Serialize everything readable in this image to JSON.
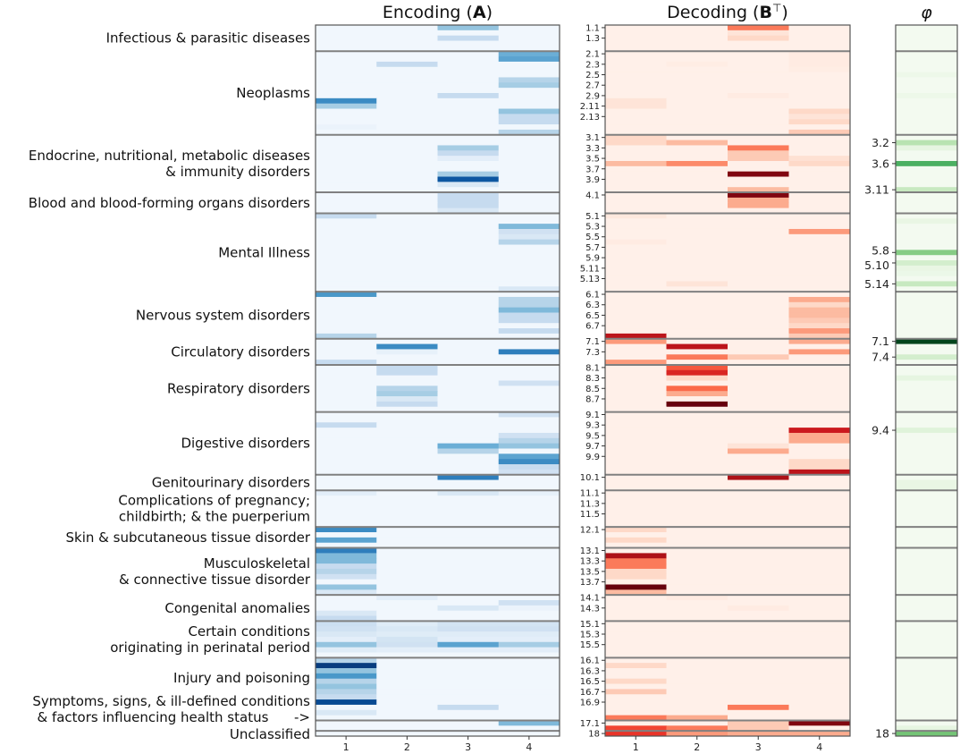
{
  "chart_data": {
    "type": "heatmap",
    "panels": [
      {
        "key": "encoding",
        "title_parts": [
          "Encoding (",
          "A",
          ")"
        ],
        "colormap": "Blues",
        "columns": [
          "1",
          "2",
          "3",
          "4"
        ]
      },
      {
        "key": "decoding",
        "title_parts": [
          "Decoding (",
          "B",
          "⊤",
          ")"
        ],
        "colormap": "Reds",
        "columns": [
          "1",
          "2",
          "3",
          "4"
        ]
      },
      {
        "key": "phi",
        "title_parts": [
          "φ"
        ],
        "colormap": "Greens",
        "columns": []
      }
    ],
    "groups": [
      {
        "id": "1",
        "rows": 5,
        "lines": [
          "Infectious & parasitic diseases"
        ]
      },
      {
        "id": "2",
        "rows": 16,
        "lines": [
          "Neoplasms"
        ]
      },
      {
        "id": "3",
        "rows": 11,
        "lines": [
          "Endocrine, nutritional, metabolic diseases",
          "& immunity disorders"
        ]
      },
      {
        "id": "4",
        "rows": 4,
        "lines": [
          "Blood and blood-forming organs disorders"
        ]
      },
      {
        "id": "5",
        "rows": 15,
        "lines": [
          "Mental Illness"
        ]
      },
      {
        "id": "6",
        "rows": 9,
        "lines": [
          "Nervous system disorders"
        ]
      },
      {
        "id": "7",
        "rows": 5,
        "lines": [
          "Circulatory disorders"
        ]
      },
      {
        "id": "8",
        "rows": 9,
        "lines": [
          "Respiratory disorders"
        ]
      },
      {
        "id": "9",
        "rows": 12,
        "lines": [
          "Digestive disorders"
        ]
      },
      {
        "id": "10",
        "rows": 3,
        "lines": [
          "Genitourinary disorders"
        ]
      },
      {
        "id": "11",
        "rows": 7,
        "lines": [
          "Complications of pregnancy;",
          "childbirth; & the puerperium"
        ]
      },
      {
        "id": "12",
        "rows": 4,
        "lines": [
          "Skin & subcutaneous tissue disorder"
        ]
      },
      {
        "id": "13",
        "rows": 9,
        "lines": [
          "Musculoskeletal",
          "& connective tissue disorder"
        ]
      },
      {
        "id": "14",
        "rows": 5,
        "lines": [
          "Congenital anomalies"
        ]
      },
      {
        "id": "15",
        "rows": 7,
        "lines": [
          "Certain conditions",
          "originating in perinatal period"
        ]
      },
      {
        "id": "16",
        "rows": 12,
        "lines": [
          "Injury and poisoning"
        ]
      },
      {
        "id": "17",
        "rows": 2,
        "lines": [
          "Symptoms, signs, & ill-defined conditions",
          "& factors influencing health status      ->"
        ]
      },
      {
        "id": "18",
        "rows": 1,
        "lines": [
          "Unclassified"
        ]
      }
    ],
    "decoding_tick_labels": [
      "1.1",
      "1.3",
      "2.1",
      "2.3",
      "2.5",
      "2.7",
      "2.9",
      "2.11",
      "2.13",
      "3.1",
      "3.3",
      "3.5",
      "3.7",
      "3.9",
      "4.1",
      "5.1",
      "5.3",
      "5.5",
      "5.7",
      "5.9",
      "5.11",
      "5.13",
      "6.1",
      "6.3",
      "6.5",
      "6.7",
      "7.1",
      "7.3",
      "8.1",
      "8.3",
      "8.5",
      "8.7",
      "9.1",
      "9.3",
      "9.5",
      "9.7",
      "9.9",
      "10.1",
      "11.1",
      "11.3",
      "11.5",
      "12.1",
      "13.1",
      "13.3",
      "13.5",
      "13.7",
      "14.1",
      "14.3",
      "15.1",
      "15.3",
      "15.5",
      "16.1",
      "16.3",
      "16.5",
      "16.7",
      "16.9",
      "17.1",
      "18"
    ],
    "phi_tick_labels": [
      "3.2",
      "3.6",
      "3.11",
      "5.8",
      "5.10",
      "5.14",
      "7.1",
      "7.4",
      "9.4",
      "18"
    ],
    "value_range": [
      0,
      1
    ],
    "background_value": 0.03,
    "encoding_cells": [
      [
        "1.1",
        3,
        0.4
      ],
      [
        "1.3",
        3,
        0.25
      ],
      [
        "2.1",
        4,
        0.5
      ],
      [
        "2.2",
        4,
        0.55
      ],
      [
        "2.3",
        2,
        0.25
      ],
      [
        "2.6",
        4,
        0.3
      ],
      [
        "2.7",
        4,
        0.35
      ],
      [
        "2.9",
        3,
        0.25
      ],
      [
        "2.10",
        1,
        0.65
      ],
      [
        "2.11",
        1,
        0.35
      ],
      [
        "2.12",
        4,
        0.4
      ],
      [
        "2.13",
        4,
        0.25
      ],
      [
        "2.14",
        4,
        0.25
      ],
      [
        "2.15",
        1,
        0.06
      ],
      [
        "2.16",
        4,
        0.3
      ],
      [
        "3.3",
        3,
        0.35
      ],
      [
        "3.4",
        3,
        0.25
      ],
      [
        "3.5",
        3,
        0.1
      ],
      [
        "3.8",
        3,
        0.35
      ],
      [
        "3.9",
        3,
        0.85
      ],
      [
        "3.10",
        3,
        0.15
      ],
      [
        "4.1",
        3,
        0.25
      ],
      [
        "4.2",
        3,
        0.25
      ],
      [
        "4.3",
        3,
        0.25
      ],
      [
        "4.4",
        3,
        0.15
      ],
      [
        "5.1",
        1,
        0.25
      ],
      [
        "5.3",
        4,
        0.45
      ],
      [
        "5.4",
        4,
        0.2
      ],
      [
        "5.5",
        4,
        0.15
      ],
      [
        "5.6",
        4,
        0.3
      ],
      [
        "5.15",
        4,
        0.15
      ],
      [
        "6.1",
        1,
        0.6
      ],
      [
        "6.2",
        4,
        0.3
      ],
      [
        "6.3",
        4,
        0.3
      ],
      [
        "6.4",
        4,
        0.45
      ],
      [
        "6.5",
        4,
        0.25
      ],
      [
        "6.6",
        4,
        0.25
      ],
      [
        "6.8",
        4,
        0.25
      ],
      [
        "6.9",
        1,
        0.3
      ],
      [
        "7.2",
        2,
        0.65
      ],
      [
        "7.3",
        2,
        0.08
      ],
      [
        "7.3",
        4,
        0.7
      ],
      [
        "7.5",
        1,
        0.25
      ],
      [
        "8.1",
        2,
        0.25
      ],
      [
        "8.2",
        2,
        0.25
      ],
      [
        "8.4",
        4,
        0.2
      ],
      [
        "8.5",
        2,
        0.3
      ],
      [
        "8.6",
        2,
        0.35
      ],
      [
        "8.7",
        2,
        0.15
      ],
      [
        "8.8",
        2,
        0.25
      ],
      [
        "9.1",
        4,
        0.2
      ],
      [
        "9.3",
        1,
        0.25
      ],
      [
        "9.5",
        4,
        0.2
      ],
      [
        "9.6",
        4,
        0.3
      ],
      [
        "9.7",
        4,
        0.4
      ],
      [
        "9.7",
        3,
        0.5
      ],
      [
        "9.8",
        3,
        0.3
      ],
      [
        "9.9",
        4,
        0.55
      ],
      [
        "9.10",
        4,
        0.65
      ],
      [
        "9.11",
        4,
        0.25
      ],
      [
        "9.12",
        4,
        0.2
      ],
      [
        "10.1",
        3,
        0.7
      ],
      [
        "11.1",
        1,
        0.1
      ],
      [
        "11.1",
        3,
        0.15
      ],
      [
        "11.1",
        4,
        0.08
      ],
      [
        "12.1",
        1,
        0.65
      ],
      [
        "12.3",
        1,
        0.55
      ],
      [
        "13.1",
        1,
        0.7
      ],
      [
        "13.2",
        1,
        0.45
      ],
      [
        "13.3",
        1,
        0.45
      ],
      [
        "13.4",
        1,
        0.25
      ],
      [
        "13.5",
        1,
        0.3
      ],
      [
        "13.6",
        1,
        0.2
      ],
      [
        "13.8",
        1,
        0.4
      ],
      [
        "13.9",
        1,
        0.15
      ],
      [
        "14.1",
        2,
        0.1
      ],
      [
        "14.2",
        4,
        0.2
      ],
      [
        "14.3",
        3,
        0.15
      ],
      [
        "14.3",
        4,
        0.06
      ],
      [
        "14.4",
        1,
        0.15
      ],
      [
        "14.5",
        1,
        0.25
      ],
      [
        "15.1",
        1,
        0.22
      ],
      [
        "15.2",
        1,
        0.2
      ],
      [
        "15.3",
        1,
        0.15
      ],
      [
        "15.4",
        1,
        0.1
      ],
      [
        "15.5",
        1,
        0.4
      ],
      [
        "15.6",
        1,
        0.12
      ],
      [
        "15.1",
        2,
        0.12
      ],
      [
        "15.2",
        2,
        0.15
      ],
      [
        "15.3",
        2,
        0.12
      ],
      [
        "15.4",
        2,
        0.18
      ],
      [
        "15.5",
        2,
        0.2
      ],
      [
        "15.6",
        2,
        0.1
      ],
      [
        "15.1",
        3,
        0.18
      ],
      [
        "15.2",
        3,
        0.2
      ],
      [
        "15.3",
        3,
        0.12
      ],
      [
        "15.4",
        3,
        0.1
      ],
      [
        "15.5",
        3,
        0.55
      ],
      [
        "15.6",
        3,
        0.1
      ],
      [
        "15.1",
        4,
        0.18
      ],
      [
        "15.2",
        4,
        0.2
      ],
      [
        "15.3",
        4,
        0.12
      ],
      [
        "15.4",
        4,
        0.1
      ],
      [
        "15.5",
        4,
        0.35
      ],
      [
        "15.6",
        4,
        0.1
      ],
      [
        "16.1",
        1,
        0.3
      ],
      [
        "16.2",
        1,
        0.95
      ],
      [
        "16.3",
        1,
        0.4
      ],
      [
        "16.4",
        1,
        0.6
      ],
      [
        "16.5",
        1,
        0.3
      ],
      [
        "16.6",
        1,
        0.4
      ],
      [
        "16.7",
        1,
        0.3
      ],
      [
        "16.8",
        1,
        0.25
      ],
      [
        "16.9",
        1,
        0.9
      ],
      [
        "16.10",
        3,
        0.25
      ],
      [
        "16.11",
        1,
        0.15
      ],
      [
        "17.1",
        4,
        0.45
      ]
    ],
    "decoding_cells": [
      [
        "1.1",
        3,
        0.45
      ],
      [
        "1.3",
        3,
        0.15
      ],
      [
        "1.2",
        3,
        0.1
      ],
      [
        "2.3",
        2,
        0.05
      ],
      [
        "2.10",
        1,
        0.1
      ],
      [
        "2.11",
        1,
        0.1
      ],
      [
        "2.1",
        4,
        0.06
      ],
      [
        "2.2",
        4,
        0.06
      ],
      [
        "2.3",
        4,
        0.06
      ],
      [
        "2.4",
        4,
        0.05
      ],
      [
        "2.12",
        4,
        0.15
      ],
      [
        "2.13",
        4,
        0.1
      ],
      [
        "2.14",
        4,
        0.15
      ],
      [
        "2.16",
        4,
        0.2
      ],
      [
        "2.9",
        3,
        0.06
      ],
      [
        "3.1",
        1,
        0.15
      ],
      [
        "3.2",
        1,
        0.15
      ],
      [
        "3.2",
        2,
        0.25
      ],
      [
        "3.3",
        3,
        0.45
      ],
      [
        "3.4",
        3,
        0.2
      ],
      [
        "3.5",
        3,
        0.2
      ],
      [
        "3.6",
        1,
        0.25
      ],
      [
        "3.6",
        2,
        0.4
      ],
      [
        "3.5",
        4,
        0.12
      ],
      [
        "3.6",
        4,
        0.15
      ],
      [
        "3.8",
        3,
        0.95
      ],
      [
        "3.11",
        3,
        0.25
      ],
      [
        "4.1",
        3,
        0.95
      ],
      [
        "4.2",
        3,
        0.3
      ],
      [
        "4.3",
        3,
        0.3
      ],
      [
        "5.1",
        1,
        0.08
      ],
      [
        "5.4",
        4,
        0.35
      ],
      [
        "5.14",
        2,
        0.1
      ],
      [
        "5.6",
        1,
        0.06
      ],
      [
        "6.2",
        4,
        0.3
      ],
      [
        "6.3",
        4,
        0.15
      ],
      [
        "6.4",
        4,
        0.25
      ],
      [
        "6.5",
        4,
        0.25
      ],
      [
        "6.6",
        4,
        0.2
      ],
      [
        "6.7",
        4,
        0.15
      ],
      [
        "6.8",
        4,
        0.35
      ],
      [
        "6.9",
        4,
        0.2
      ],
      [
        "6.9",
        1,
        0.8
      ],
      [
        "7.1",
        1,
        0.35
      ],
      [
        "7.1",
        4,
        0.3
      ],
      [
        "7.2",
        2,
        0.8
      ],
      [
        "7.3",
        4,
        0.35
      ],
      [
        "7.4",
        2,
        0.45
      ],
      [
        "7.4",
        3,
        0.2
      ],
      [
        "7.5",
        1,
        0.35
      ],
      [
        "8.1",
        2,
        0.55
      ],
      [
        "8.2",
        2,
        0.7
      ],
      [
        "8.3",
        2,
        0.15
      ],
      [
        "8.5",
        2,
        0.5
      ],
      [
        "8.6",
        2,
        0.3
      ],
      [
        "8.8",
        2,
        1.0
      ],
      [
        "9.4",
        4,
        0.75
      ],
      [
        "9.5",
        4,
        0.3
      ],
      [
        "9.6",
        4,
        0.3
      ],
      [
        "9.8",
        3,
        0.3
      ],
      [
        "9.7",
        3,
        0.1
      ],
      [
        "9.10",
        4,
        0.15
      ],
      [
        "9.11",
        4,
        0.15
      ],
      [
        "9.12",
        4,
        0.8
      ],
      [
        "10.1",
        3,
        0.85
      ],
      [
        "12.1",
        1,
        0.15
      ],
      [
        "12.3",
        1,
        0.15
      ],
      [
        "13.2",
        1,
        0.85
      ],
      [
        "13.3",
        1,
        0.45
      ],
      [
        "13.4",
        1,
        0.45
      ],
      [
        "13.5",
        1,
        0.15
      ],
      [
        "13.6",
        1,
        0.15
      ],
      [
        "13.8",
        1,
        1.0
      ],
      [
        "13.9",
        1,
        0.25
      ],
      [
        "14.1",
        2,
        0.06
      ],
      [
        "14.3",
        3,
        0.06
      ],
      [
        "16.2",
        1,
        0.15
      ],
      [
        "16.5",
        1,
        0.15
      ],
      [
        "16.7",
        1,
        0.2
      ],
      [
        "16.10",
        3,
        0.45
      ],
      [
        "16.12",
        1,
        0.45
      ],
      [
        "16.12",
        2,
        0.3
      ],
      [
        "17.1",
        4,
        0.95
      ],
      [
        "17.1",
        3,
        0.2
      ],
      [
        "17.2",
        3,
        0.2
      ],
      [
        "17.2",
        1,
        0.6
      ],
      [
        "17.2",
        2,
        0.45
      ],
      [
        "18",
        1,
        0.65
      ],
      [
        "18",
        2,
        0.35
      ],
      [
        "18",
        3,
        0.3
      ],
      [
        "18",
        4,
        0.3
      ]
    ],
    "phi_cells": [
      [
        "2.5",
        0.07
      ],
      [
        "2.9",
        0.07
      ],
      [
        "3.2",
        0.3
      ],
      [
        "3.3",
        0.12
      ],
      [
        "3.6",
        0.6
      ],
      [
        "3.11",
        0.25
      ],
      [
        "5.2",
        0.1
      ],
      [
        "5.8",
        0.45
      ],
      [
        "5.10",
        0.2
      ],
      [
        "5.11",
        0.1
      ],
      [
        "5.12",
        0.08
      ],
      [
        "5.14",
        0.25
      ],
      [
        "7.1",
        1.0
      ],
      [
        "7.4",
        0.2
      ],
      [
        "8.3",
        0.12
      ],
      [
        "9.4",
        0.15
      ],
      [
        "10.2",
        0.1
      ],
      [
        "10.3",
        0.1
      ],
      [
        "17.2",
        0.12
      ],
      [
        "18",
        0.5
      ]
    ]
  }
}
